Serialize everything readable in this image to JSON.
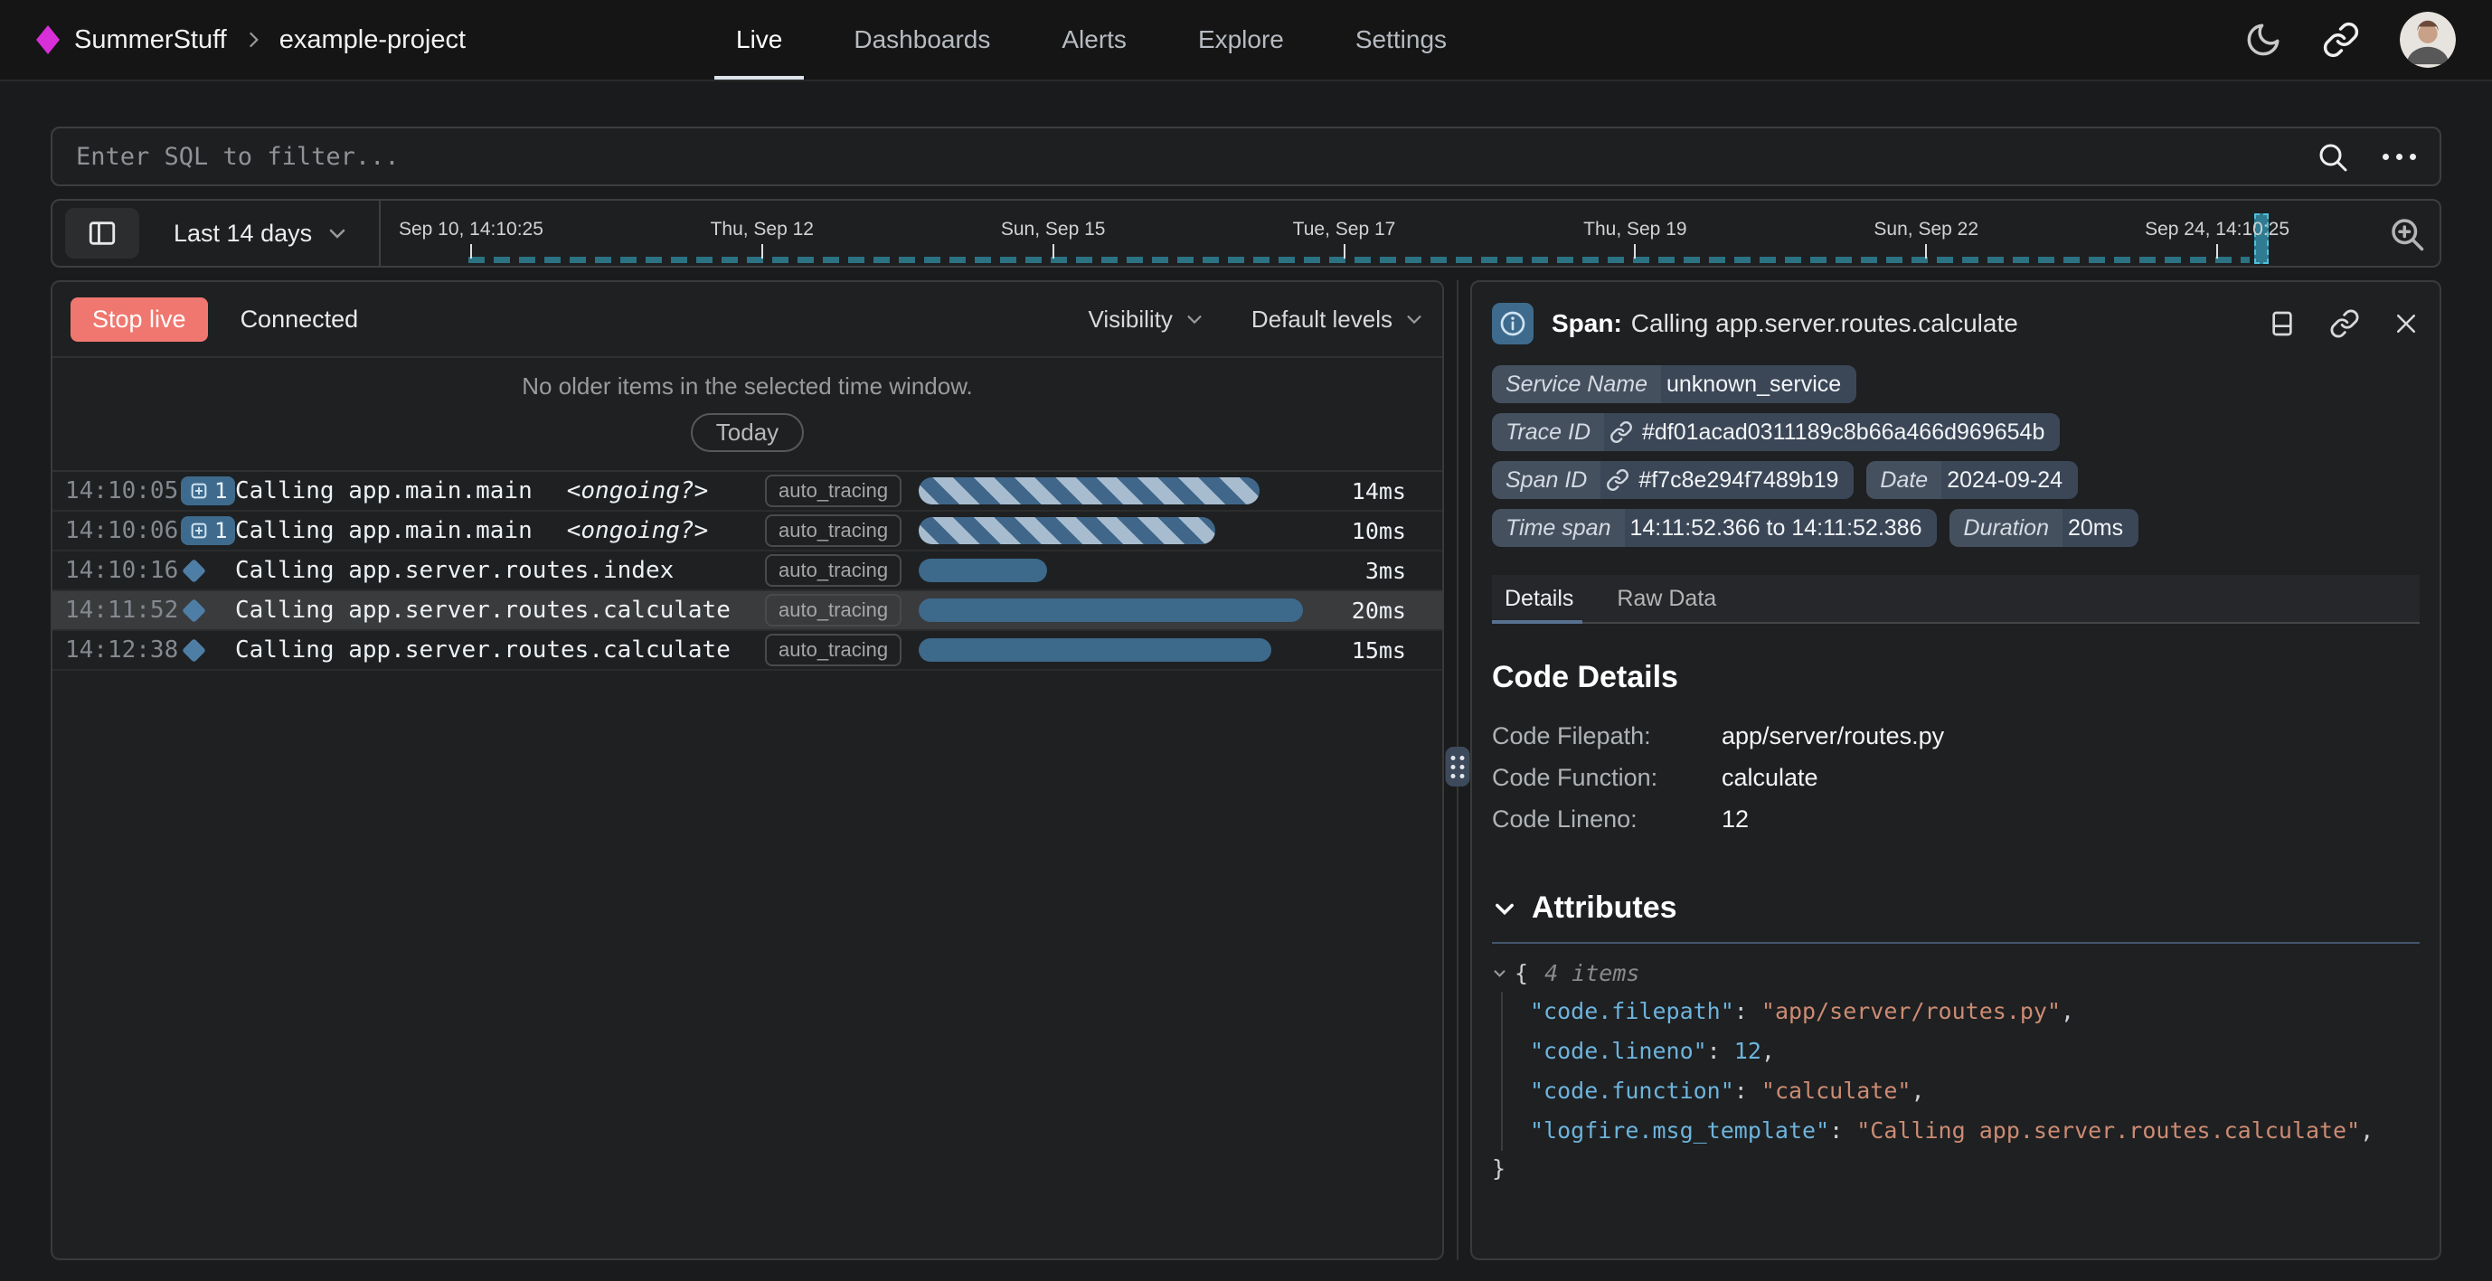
{
  "colors": {
    "brand_magenta": "#d82fd8",
    "stop_live_red": "#f0776f",
    "bar_blue": "#3d698b",
    "bar_stripe_light": "#a7bccf",
    "timeline_teal": "#2b7283",
    "badge_slate": "#3b4757",
    "icon_steel_blue": "#3e6b8d",
    "json_key_blue": "#6db4dd",
    "json_string_salmon": "#cd8b72"
  },
  "nav": {
    "brand": "SummerStuff",
    "project": "example-project",
    "tabs": [
      {
        "label": "Live",
        "active": true
      },
      {
        "label": "Dashboards",
        "active": false
      },
      {
        "label": "Alerts",
        "active": false
      },
      {
        "label": "Explore",
        "active": false
      },
      {
        "label": "Settings",
        "active": false
      }
    ]
  },
  "sql_filter": {
    "placeholder": "Enter SQL to filter..."
  },
  "time_bar": {
    "range_label": "Last 14 days",
    "ticks": [
      "Sep 10, 14:10:25",
      "Thu, Sep 12",
      "Sun, Sep 15",
      "Tue, Sep 17",
      "Thu, Sep 19",
      "Sun, Sep 22",
      "Sep 24, 14:10:25"
    ]
  },
  "live_panel": {
    "stop_live_label": "Stop live",
    "connection_status": "Connected",
    "visibility_label": "Visibility",
    "default_levels_label": "Default levels",
    "empty_message": "No older items in the selected time window.",
    "today_label": "Today",
    "rows": [
      {
        "time": "14:10:05",
        "icon": "count-badge",
        "count": "1",
        "message": "Calling app.main.main",
        "suffix": "<ongoing?>",
        "tag": "auto_tracing",
        "duration": "14ms",
        "bar_pct": 85,
        "bar_style": "striped",
        "selected": false
      },
      {
        "time": "14:10:06",
        "icon": "count-badge",
        "count": "1",
        "message": "Calling app.main.main",
        "suffix": "<ongoing?>",
        "tag": "auto_tracing",
        "duration": "10ms",
        "bar_pct": 74,
        "bar_style": "striped",
        "selected": false
      },
      {
        "time": "14:10:16",
        "icon": "diamond",
        "count": "",
        "message": "Calling app.server.routes.index",
        "suffix": "",
        "tag": "auto_tracing",
        "duration": "3ms",
        "bar_pct": 32,
        "bar_style": "solid",
        "selected": false
      },
      {
        "time": "14:11:52",
        "icon": "diamond",
        "count": "",
        "message": "Calling app.server.routes.calculate",
        "suffix": "",
        "tag": "auto_tracing",
        "duration": "20ms",
        "bar_pct": 96,
        "bar_style": "solid",
        "selected": true
      },
      {
        "time": "14:12:38",
        "icon": "diamond",
        "count": "",
        "message": "Calling app.server.routes.calculate",
        "suffix": "",
        "tag": "auto_tracing",
        "duration": "15ms",
        "bar_pct": 88,
        "bar_style": "solid",
        "selected": false
      }
    ]
  },
  "detail_panel": {
    "title_prefix": "Span:",
    "title": "Calling app.server.routes.calculate",
    "badge_rows": [
      [
        {
          "label": "Service Name",
          "value": "unknown_service",
          "link": false
        }
      ],
      [
        {
          "label": "Trace ID",
          "value": "#df01acad0311189c8b66a466d969654b",
          "link": true
        }
      ],
      [
        {
          "label": "Span ID",
          "value": "#f7c8e294f7489b19",
          "link": true
        },
        {
          "label": "Date",
          "value": "2024-09-24",
          "link": false
        }
      ],
      [
        {
          "label": "Time span",
          "value": "14:11:52.366 to 14:11:52.386",
          "link": false
        },
        {
          "label": "Duration",
          "value": "20ms",
          "link": false
        }
      ]
    ],
    "tabs": [
      {
        "label": "Details",
        "active": true
      },
      {
        "label": "Raw Data",
        "active": false
      }
    ],
    "code_details": {
      "heading": "Code Details",
      "rows": [
        {
          "label": "Code Filepath:",
          "value": "app/server/routes.py"
        },
        {
          "label": "Code Function:",
          "value": "calculate"
        },
        {
          "label": "Code Lineno:",
          "value": "12"
        }
      ]
    },
    "attributes": {
      "heading": "Attributes",
      "items_note": "4 items",
      "open_brace": "{",
      "close_brace": "}",
      "entries": [
        {
          "key": "code.filepath",
          "value": "app/server/routes.py",
          "type": "string"
        },
        {
          "key": "code.lineno",
          "value": "12",
          "type": "number"
        },
        {
          "key": "code.function",
          "value": "calculate",
          "type": "string"
        },
        {
          "key": "logfire.msg_template",
          "value": "Calling app.server.routes.calculate",
          "type": "string"
        }
      ]
    }
  }
}
